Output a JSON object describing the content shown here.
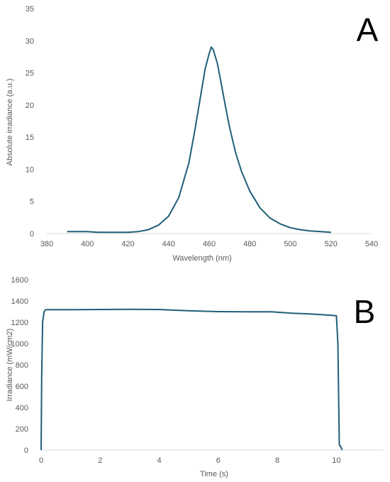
{
  "chart_data": [
    {
      "type": "line",
      "panel_label": "A",
      "xlabel": "Wavelength (nm)",
      "ylabel": "Absolute irradiance (a.u.)",
      "xlim": [
        380,
        540
      ],
      "ylim": [
        0,
        35
      ],
      "x_ticks": [
        "380",
        "400",
        "420",
        "440",
        "460",
        "480",
        "500",
        "520",
        "540"
      ],
      "y_ticks": [
        "0",
        "5",
        "10",
        "15",
        "20",
        "25",
        "30",
        "35"
      ],
      "grid": false,
      "line_color": "#1f5f7a",
      "series": [
        {
          "x": [
            390,
            395,
            400,
            405,
            410,
            415,
            420,
            425,
            430,
            435,
            440,
            445,
            450,
            453,
            456,
            458,
            460,
            461,
            462,
            464,
            466,
            468,
            470,
            473,
            476,
            480,
            485,
            490,
            495,
            500,
            505,
            510,
            515,
            520
          ],
          "y": [
            0.3,
            0.3,
            0.3,
            0.2,
            0.2,
            0.2,
            0.2,
            0.3,
            0.6,
            1.3,
            2.7,
            5.6,
            11.0,
            16.2,
            21.8,
            25.6,
            28.0,
            29.0,
            28.6,
            26.5,
            23.2,
            19.8,
            16.6,
            12.6,
            9.6,
            6.6,
            4.0,
            2.4,
            1.5,
            0.9,
            0.6,
            0.4,
            0.3,
            0.2
          ]
        }
      ]
    },
    {
      "type": "line",
      "panel_label": "B",
      "xlabel": "Time (s)",
      "ylabel": "Irradiance (mW/cm2)",
      "xlim": [
        0,
        11.6
      ],
      "ylim": [
        0,
        1600
      ],
      "x_ticks": [
        "0",
        "2",
        "4",
        "6",
        "8",
        "10"
      ],
      "y_ticks": [
        "0",
        "200",
        "400",
        "600",
        "800",
        "1000",
        "1200",
        "1400",
        "1600"
      ],
      "grid": false,
      "line_color": "#1f5f7a",
      "series": [
        {
          "x": [
            0.0,
            0.02,
            0.05,
            0.1,
            0.15,
            0.2,
            1.0,
            2.0,
            3.0,
            4.0,
            5.0,
            6.0,
            7.0,
            7.8,
            8.5,
            9.0,
            9.5,
            10.0,
            10.05,
            10.1,
            10.15,
            10.2
          ],
          "y": [
            0,
            700,
            1200,
            1300,
            1318,
            1318,
            1318,
            1320,
            1322,
            1320,
            1308,
            1300,
            1298,
            1298,
            1285,
            1280,
            1272,
            1262,
            1000,
            50,
            30,
            0
          ]
        }
      ]
    }
  ]
}
